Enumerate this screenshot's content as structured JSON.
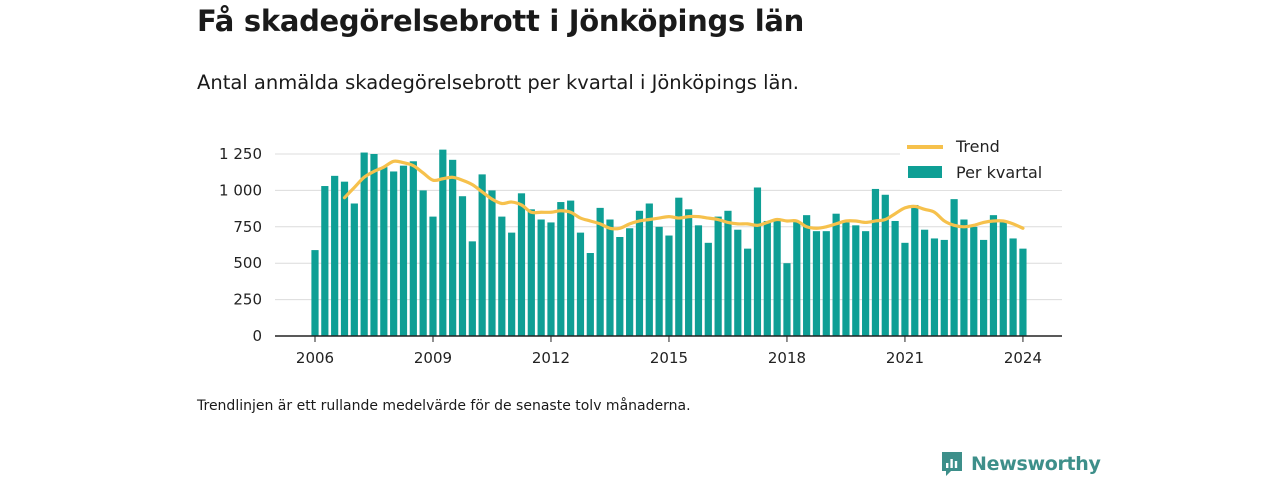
{
  "header": {
    "title": "Få skadegörelsebrott i Jönköpings län",
    "subtitle": "Antal anmälda skadegörelsebrott per kvartal i Jönköpings län."
  },
  "footer": {
    "note": "Trendlinjen är ett rullande medelvärde för de senaste tolv månaderna.",
    "brand": "Newsworthy"
  },
  "colors": {
    "bar": "#0e9f95",
    "trend": "#f6c14c",
    "brand": "#3d8f8a"
  },
  "chart_data": {
    "type": "bar",
    "x_label_unit": "year",
    "ylim": [
      0,
      1250
    ],
    "y_ticks": [
      0,
      250,
      500,
      750,
      1000,
      1250
    ],
    "y_tick_labels": [
      "0",
      "250",
      "500",
      "750",
      "1 000",
      "1 250"
    ],
    "x_ticks": [
      2006,
      2009,
      2012,
      2015,
      2018,
      2021,
      2024
    ],
    "x_tick_labels": [
      "2006",
      "2009",
      "2012",
      "2015",
      "2018",
      "2021",
      "2024"
    ],
    "grid": true,
    "legend_position": "top-right",
    "series": [
      {
        "name": "Per kvartal",
        "type": "bar",
        "x": [
          "2006 Q1",
          "2006 Q2",
          "2006 Q3",
          "2006 Q4",
          "2007 Q1",
          "2007 Q2",
          "2007 Q3",
          "2007 Q4",
          "2008 Q1",
          "2008 Q2",
          "2008 Q3",
          "2008 Q4",
          "2009 Q1",
          "2009 Q2",
          "2009 Q3",
          "2009 Q4",
          "2010 Q1",
          "2010 Q2",
          "2010 Q3",
          "2010 Q4",
          "2011 Q1",
          "2011 Q2",
          "2011 Q3",
          "2011 Q4",
          "2012 Q1",
          "2012 Q2",
          "2012 Q3",
          "2012 Q4",
          "2013 Q1",
          "2013 Q2",
          "2013 Q3",
          "2013 Q4",
          "2014 Q1",
          "2014 Q2",
          "2014 Q3",
          "2014 Q4",
          "2015 Q1",
          "2015 Q2",
          "2015 Q3",
          "2015 Q4",
          "2016 Q1",
          "2016 Q2",
          "2016 Q3",
          "2016 Q4",
          "2017 Q1",
          "2017 Q2",
          "2017 Q3",
          "2017 Q4",
          "2018 Q1",
          "2018 Q2",
          "2018 Q3",
          "2018 Q4",
          "2019 Q1",
          "2019 Q2",
          "2019 Q3",
          "2019 Q4",
          "2020 Q1",
          "2020 Q2",
          "2020 Q3",
          "2020 Q4",
          "2021 Q1",
          "2021 Q2",
          "2021 Q3",
          "2021 Q4",
          "2022 Q1",
          "2022 Q2",
          "2022 Q3",
          "2022 Q4",
          "2023 Q1",
          "2023 Q2",
          "2023 Q3",
          "2023 Q4",
          "2024 Q1"
        ],
        "values": [
          590,
          1030,
          1100,
          1060,
          910,
          1260,
          1250,
          1160,
          1130,
          1170,
          1200,
          1000,
          820,
          1280,
          1210,
          960,
          650,
          1110,
          1000,
          820,
          710,
          980,
          870,
          800,
          780,
          920,
          930,
          710,
          570,
          880,
          800,
          680,
          740,
          860,
          910,
          750,
          690,
          950,
          870,
          760,
          640,
          820,
          860,
          730,
          600,
          1020,
          790,
          800,
          500,
          790,
          830,
          720,
          720,
          840,
          780,
          760,
          720,
          1010,
          970,
          790,
          640,
          900,
          730,
          670,
          660,
          940,
          800,
          750,
          660,
          830,
          790,
          670,
          600
        ]
      },
      {
        "name": "Trend",
        "type": "line",
        "x": [
          "2006 Q4",
          "2007 Q1",
          "2007 Q2",
          "2007 Q3",
          "2007 Q4",
          "2008 Q1",
          "2008 Q2",
          "2008 Q3",
          "2008 Q4",
          "2009 Q1",
          "2009 Q2",
          "2009 Q3",
          "2009 Q4",
          "2010 Q1",
          "2010 Q2",
          "2010 Q3",
          "2010 Q4",
          "2011 Q1",
          "2011 Q2",
          "2011 Q3",
          "2011 Q4",
          "2012 Q1",
          "2012 Q2",
          "2012 Q3",
          "2012 Q4",
          "2013 Q1",
          "2013 Q2",
          "2013 Q3",
          "2013 Q4",
          "2014 Q1",
          "2014 Q2",
          "2014 Q3",
          "2014 Q4",
          "2015 Q1",
          "2015 Q2",
          "2015 Q3",
          "2015 Q4",
          "2016 Q1",
          "2016 Q2",
          "2016 Q3",
          "2016 Q4",
          "2017 Q1",
          "2017 Q2",
          "2017 Q3",
          "2017 Q4",
          "2018 Q1",
          "2018 Q2",
          "2018 Q3",
          "2018 Q4",
          "2019 Q1",
          "2019 Q2",
          "2019 Q3",
          "2019 Q4",
          "2020 Q1",
          "2020 Q2",
          "2020 Q3",
          "2020 Q4",
          "2021 Q1",
          "2021 Q2",
          "2021 Q3",
          "2021 Q4",
          "2022 Q1",
          "2022 Q2",
          "2022 Q3",
          "2022 Q4",
          "2023 Q1",
          "2023 Q2",
          "2023 Q3",
          "2023 Q4",
          "2024 Q1"
        ],
        "values": [
          950,
          1020,
          1090,
          1130,
          1160,
          1200,
          1190,
          1170,
          1120,
          1070,
          1080,
          1090,
          1070,
          1040,
          990,
          940,
          910,
          920,
          900,
          850,
          850,
          850,
          860,
          850,
          810,
          790,
          770,
          740,
          740,
          770,
          790,
          800,
          810,
          820,
          810,
          820,
          820,
          810,
          800,
          780,
          770,
          770,
          760,
          780,
          800,
          790,
          790,
          750,
          740,
          750,
          770,
          790,
          790,
          780,
          790,
          800,
          840,
          880,
          890,
          870,
          850,
          790,
          760,
          750,
          760,
          780,
          790,
          790,
          770,
          740
        ]
      }
    ]
  }
}
